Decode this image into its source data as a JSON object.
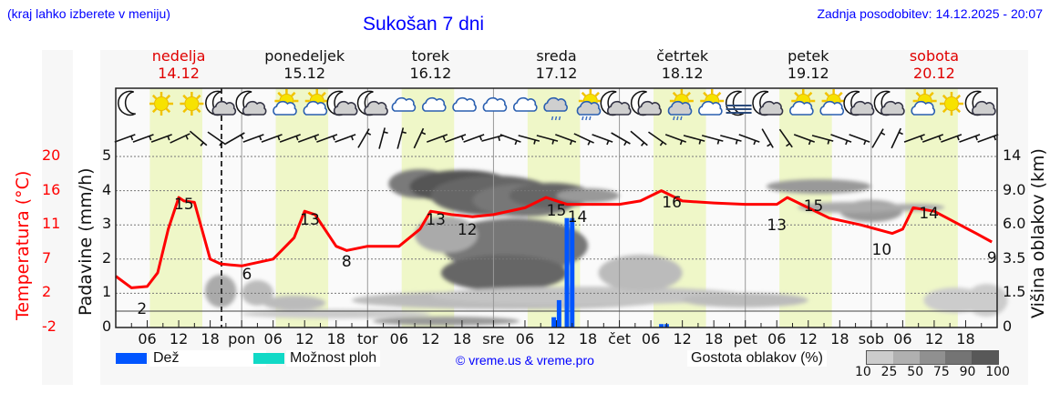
{
  "header": {
    "region_hint": "(kraj lahko izberete v meniju)",
    "title": "Sukošan 7 dni",
    "last_update": "Zadnja posodobitev: 14.12.2025 - 20:07"
  },
  "days": [
    {
      "name": "nedelja",
      "date": "14.12",
      "weekend": true
    },
    {
      "name": "ponedeljek",
      "date": "15.12",
      "weekend": false
    },
    {
      "name": "torek",
      "date": "16.12",
      "weekend": false
    },
    {
      "name": "sreda",
      "date": "17.12",
      "weekend": false
    },
    {
      "name": "četrtek",
      "date": "18.12",
      "weekend": false
    },
    {
      "name": "petek",
      "date": "19.12",
      "weekend": false
    },
    {
      "name": "sobota",
      "date": "20.12",
      "weekend": true
    }
  ],
  "axes": {
    "left_temp_label": "Temperatura (°C)",
    "left_temp_ticks": [
      "20",
      "16",
      "11",
      "7",
      "2",
      "-2"
    ],
    "left_precip_label": "Padavine (mm/h)",
    "left_precip_ticks": [
      "5",
      "4",
      "3",
      "2",
      "1",
      "0"
    ],
    "right_label": "Višina oblakov (km)",
    "right_ticks": [
      "14",
      "9.0",
      "6.0",
      "3.5",
      "1.5",
      "0"
    ],
    "x_ticks": [
      "06",
      "12",
      "18",
      "pon",
      "06",
      "12",
      "18",
      "tor",
      "06",
      "12",
      "18",
      "sre",
      "06",
      "12",
      "18",
      "čet",
      "06",
      "12",
      "18",
      "pet",
      "06",
      "12",
      "18",
      "sob",
      "06",
      "12",
      "18"
    ]
  },
  "weather_icons": [
    "moon-icon",
    "sun-icon",
    "sun-icon",
    "moon-cloud-icon",
    "moon-cloud-icon",
    "sun-cloud-icon",
    "sun-cloud-icon",
    "moon-cloud-icon",
    "moon-cloud-icon",
    "cloud-icon",
    "cloud-icon",
    "cloud-icon",
    "cloud-icon",
    "cloud-icon",
    "cloud-rain-icon",
    "sun-cloud-rain-icon",
    "moon-cloud-icon",
    "moon-cloud-icon",
    "sun-cloud-rain-icon",
    "sun-cloud-icon",
    "moon-fog-icon",
    "moon-cloud-icon",
    "sun-cloud-icon",
    "sun-cloud-icon",
    "moon-cloud-icon",
    "moon-cloud-icon",
    "sun-cloud-icon",
    "sun-icon",
    "moon-cloud-icon"
  ],
  "legend": {
    "rain_label": "Dež",
    "rain_color": "#0055ff",
    "shower_label": "Možnost ploh",
    "shower_color": "#11d9c6",
    "copyright": "© vreme.us & vreme.pro",
    "cloud_density_label": "Gostota oblakov (%)",
    "cloud_density_ticks": [
      "10",
      "25",
      "50",
      "75",
      "90",
      "100"
    ],
    "cloud_density_colors": [
      "#cccccc",
      "#b0b0b0",
      "#909090",
      "#747474",
      "#585858"
    ]
  },
  "colors": {
    "temperature_line": "#ff0000",
    "daylight_band": "#eff7c8",
    "weekend_text": "#e00000",
    "link_text": "#0000ff"
  },
  "chart_data": {
    "type": "line",
    "title": "Sukošan 7 dni",
    "x_unit": "hours from 14.12 00:00",
    "xlim": [
      0,
      168
    ],
    "temperature": {
      "name": "Temperatura (°C)",
      "x": [
        0,
        3,
        6,
        8,
        10,
        12,
        13,
        15,
        18,
        20,
        24,
        30,
        34,
        36,
        38,
        42,
        44,
        48,
        54,
        58,
        60,
        64,
        68,
        72,
        78,
        82,
        86,
        90,
        96,
        100,
        104,
        108,
        114,
        120,
        126,
        128,
        132,
        136,
        142,
        148,
        150,
        152,
        156,
        164,
        167
      ],
      "y": [
        4.5,
        2.8,
        3.0,
        5.0,
        10.5,
        15.0,
        14.5,
        14.3,
        7.0,
        6.3,
        6.0,
        7.0,
        9.5,
        13.0,
        12.5,
        8.5,
        8.0,
        8.5,
        8.5,
        10.5,
        13.0,
        12.5,
        12.2,
        12.5,
        13.5,
        15.0,
        14.0,
        14.0,
        14.0,
        14.5,
        16.0,
        14.5,
        14.2,
        14.0,
        14.0,
        15.0,
        13.5,
        12.0,
        11.0,
        10.0,
        10.5,
        13.5,
        13.0,
        10.0,
        9.0
      ]
    },
    "temperature_annotations": [
      {
        "x": 13,
        "label": "15"
      },
      {
        "x": 5,
        "label": "2"
      },
      {
        "x": 25,
        "label": "6"
      },
      {
        "x": 37,
        "label": "13"
      },
      {
        "x": 44,
        "label": "8"
      },
      {
        "x": 61,
        "label": "13"
      },
      {
        "x": 67,
        "label": "12"
      },
      {
        "x": 84,
        "label": "15"
      },
      {
        "x": 88,
        "label": "14"
      },
      {
        "x": 106,
        "label": "16"
      },
      {
        "x": 126,
        "label": "13"
      },
      {
        "x": 133,
        "label": "15"
      },
      {
        "x": 146,
        "label": "10"
      },
      {
        "x": 155,
        "label": "14"
      },
      {
        "x": 167,
        "label": "9"
      }
    ],
    "precipitation": {
      "name": "Dež (mm/h)",
      "x": [
        83.5,
        84.5,
        86,
        87,
        104,
        105
      ],
      "y": [
        0.3,
        0.8,
        3.2,
        3.2,
        0.1,
        0.1
      ]
    },
    "ylim_precip": [
      0,
      5
    ],
    "ylabel_left": "Padavine (mm/h)",
    "ylabel_temp": "Temperatura (°C)",
    "ylabel_right": "Višina oblakov (km)",
    "grid": true,
    "legend": [
      "Dež",
      "Možnost ploh",
      "Gostota oblakov (%)"
    ]
  }
}
